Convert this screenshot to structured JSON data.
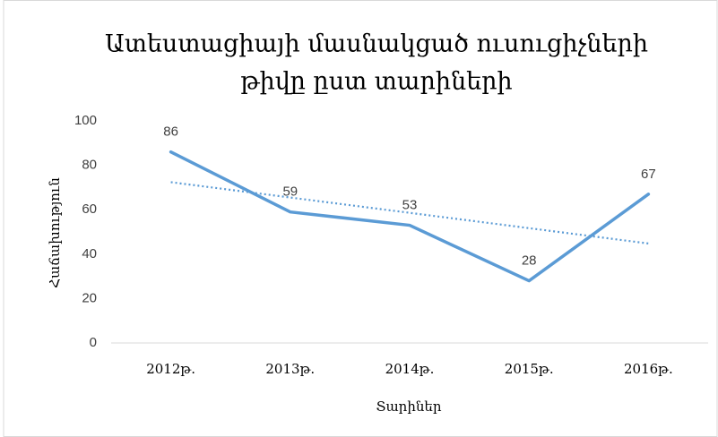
{
  "chart_data": {
    "type": "line",
    "title": [
      "Ատեստացիայի մասնակցած ուսուցիչների",
      "թիվը ըստ տարիների"
    ],
    "x_label": "Տարիներ",
    "y_label": "Հաճախություն",
    "categories": [
      "2012թ.",
      "2013թ.",
      "2014թ.",
      "2015թ.",
      "2016թ."
    ],
    "values": [
      86,
      59,
      53,
      28,
      67
    ],
    "color": "#5b9bd5",
    "trendline": true,
    "data_labels": true,
    "grid": false,
    "ylim": [
      0,
      100
    ],
    "yticks": [
      0,
      20,
      40,
      60,
      80,
      100
    ]
  }
}
